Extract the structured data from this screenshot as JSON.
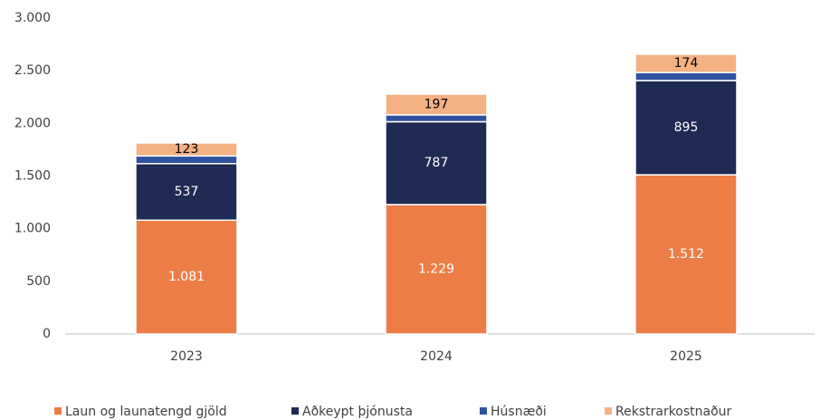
{
  "chart_data": {
    "type": "stacked_bar",
    "categories": [
      "2023",
      "2024",
      "2025"
    ],
    "series": [
      {
        "name": "Laun og launatengd gjöld",
        "color": "#ed7d47",
        "values": [
          1081,
          1229,
          1512
        ],
        "value_labels": [
          "1.081",
          "1.229",
          "1.512"
        ],
        "label_color": "#ffffff"
      },
      {
        "name": "Aðkeypt þjónusta",
        "color": "#1f2a55",
        "values": [
          537,
          787,
          895
        ],
        "value_labels": [
          "537",
          "787",
          "895"
        ],
        "label_color": "#ffffff"
      },
      {
        "name": "Húsnæði",
        "color": "#2f52a0",
        "values": [
          73,
          65,
          76
        ]
      },
      {
        "name": "Rekstrarkostnaður",
        "color": "#f4b183",
        "values": [
          123,
          197,
          174
        ],
        "value_labels": [
          "123",
          "197",
          "174"
        ],
        "label_color": "#000000"
      }
    ],
    "ylim": [
      0,
      3000
    ],
    "yticks": [
      0,
      500,
      {
        "value": 1000,
        "label": "1.000"
      },
      {
        "value": 1500,
        "label": "1.500"
      },
      {
        "value": 2000,
        "label": "2.000"
      },
      {
        "value": 2500,
        "label": "2.500"
      },
      {
        "value": 3000,
        "label": "3.000"
      }
    ],
    "grid": false,
    "legend": "bottom"
  }
}
